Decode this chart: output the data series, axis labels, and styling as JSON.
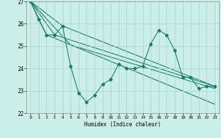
{
  "xlabel": "Humidex (Indice chaleur)",
  "xlim": [
    -0.5,
    23.5
  ],
  "ylim": [
    22,
    27
  ],
  "yticks": [
    22,
    23,
    24,
    25,
    26,
    27
  ],
  "xticks": [
    0,
    1,
    2,
    3,
    4,
    5,
    6,
    7,
    8,
    9,
    10,
    11,
    12,
    13,
    14,
    15,
    16,
    17,
    18,
    19,
    20,
    21,
    22,
    23
  ],
  "bg_color": "#cceee8",
  "grid_color": "#aad4ce",
  "line_color": "#1a7a6e",
  "main_line": [
    [
      0,
      27.0
    ],
    [
      1,
      26.2
    ],
    [
      2,
      25.5
    ],
    [
      3,
      25.5
    ],
    [
      4,
      25.9
    ],
    [
      5,
      24.1
    ],
    [
      6,
      22.9
    ],
    [
      7,
      22.5
    ],
    [
      8,
      22.8
    ],
    [
      9,
      23.3
    ],
    [
      10,
      23.5
    ],
    [
      11,
      24.2
    ],
    [
      12,
      24.0
    ],
    [
      13,
      24.0
    ],
    [
      14,
      24.1
    ],
    [
      15,
      25.1
    ],
    [
      16,
      25.7
    ],
    [
      17,
      25.5
    ],
    [
      18,
      24.8
    ],
    [
      19,
      23.6
    ],
    [
      20,
      23.6
    ],
    [
      21,
      23.1
    ],
    [
      22,
      23.2
    ],
    [
      23,
      23.2
    ]
  ],
  "trend_lines": [
    [
      [
        0,
        27.0
      ],
      [
        2,
        25.5
      ],
      [
        23,
        22.4
      ]
    ],
    [
      [
        0,
        27.0
      ],
      [
        3,
        25.5
      ],
      [
        23,
        23.2
      ]
    ],
    [
      [
        0,
        27.0
      ],
      [
        4,
        25.9
      ],
      [
        23,
        23.2
      ]
    ],
    [
      [
        0,
        27.0
      ],
      [
        5,
        25.05
      ],
      [
        23,
        23.1
      ]
    ]
  ]
}
